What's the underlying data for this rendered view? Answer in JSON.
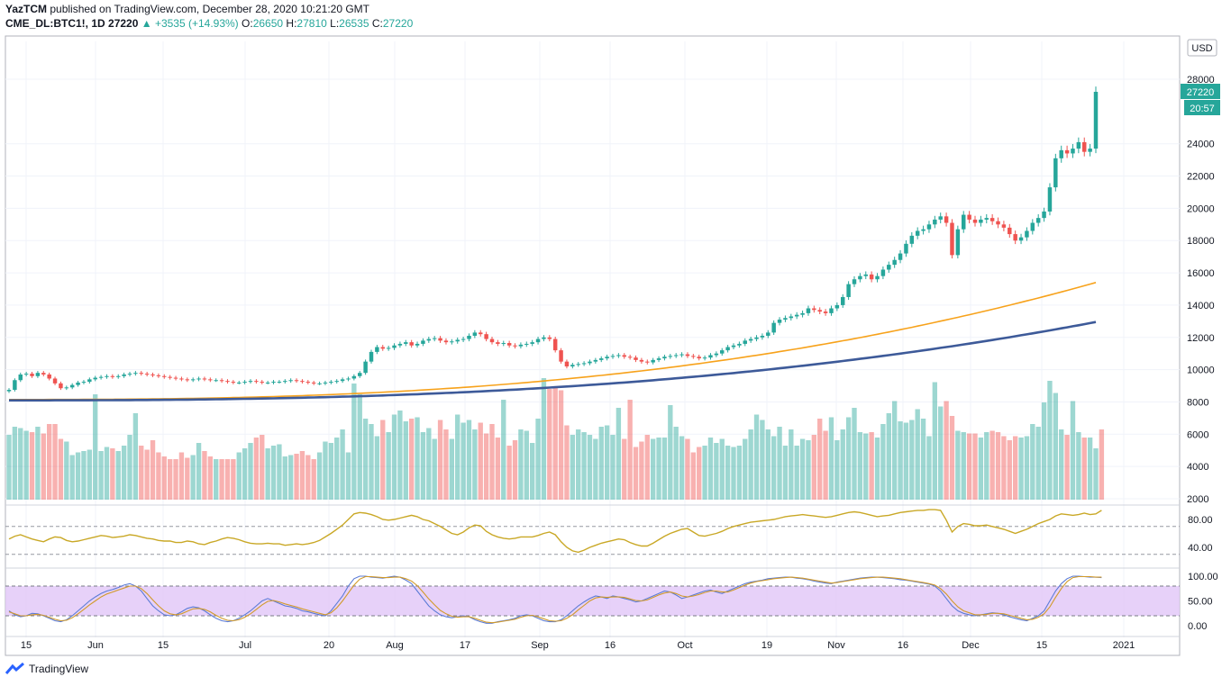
{
  "header": {
    "user": "YazTCM",
    "published_line": " published on TradingView.com, December 28, 2020 10:21:20 GMT",
    "symbol": "CME_DL:BTC1!, 1D",
    "last": "27220",
    "change": "▲ +3535 (+14.93%)",
    "open_label": "O:",
    "open": "26650",
    "high_label": "H:",
    "high": "27810",
    "low_label": "L:",
    "low": "26535",
    "close_label": "C:",
    "close": "27220"
  },
  "currency_button": "USD",
  "price_badge": "27220",
  "countdown_badge": "20:57",
  "footer": {
    "brand": "TradingView"
  },
  "colors": {
    "up": "#26a69a",
    "down": "#ef5350",
    "ma_fast": "#f7a21b",
    "ma_slow": "#3d5a99",
    "rsi": "#c9a826",
    "band": "#e1c6f7"
  },
  "chart_data": [
    {
      "type": "candlestick",
      "title": "CME_DL:BTC1!, 1D",
      "y_ticks": [
        2000,
        4000,
        6000,
        8000,
        10000,
        12000,
        14000,
        16000,
        18000,
        20000,
        22000,
        24000,
        28000
      ],
      "x_tick_labels": [
        "15",
        "Jun",
        "15",
        "Jul",
        "20",
        "Aug",
        "17",
        "Sep",
        "16",
        "Oct",
        "19",
        "Nov",
        "16",
        "Dec",
        "15",
        "2021"
      ],
      "ylim": [
        2000,
        30000
      ],
      "last_price": 27220,
      "ohlc_approx_daily": {
        "dates_start": "2020-05-12",
        "close": [
          8750,
          9350,
          9700,
          9750,
          9600,
          9800,
          9700,
          9450,
          9150,
          8850,
          8900,
          9050,
          9200,
          9250,
          9400,
          9500,
          9550,
          9600,
          9550,
          9600,
          9700,
          9750,
          9800,
          9750,
          9700,
          9650,
          9600,
          9550,
          9500,
          9450,
          9400,
          9350,
          9400,
          9450,
          9400,
          9350,
          9350,
          9300,
          9250,
          9200,
          9200,
          9250,
          9300,
          9250,
          9200,
          9200,
          9250,
          9250,
          9300,
          9350,
          9300,
          9250,
          9200,
          9150,
          9150,
          9200,
          9250,
          9300,
          9400,
          9450,
          9600,
          9800,
          10500,
          11100,
          11400,
          11300,
          11350,
          11500,
          11600,
          11700,
          11500,
          11600,
          11800,
          11900,
          11950,
          11800,
          11700,
          11750,
          11850,
          11900,
          12100,
          12300,
          12200,
          11900,
          11700,
          11600,
          11650,
          11500,
          11450,
          11550,
          11600,
          11700,
          11900,
          12000,
          11900,
          11200,
          10500,
          10200,
          10300,
          10350,
          10400,
          10500,
          10600,
          10700,
          10800,
          10850,
          10900,
          10800,
          10750,
          10600,
          10500,
          10450,
          10600,
          10700,
          10800,
          10850,
          10900,
          10950,
          10850,
          10800,
          10700,
          10750,
          10900,
          11000,
          11200,
          11400,
          11500,
          11600,
          11800,
          11900,
          12000,
          12100,
          12300,
          12900,
          13100,
          13200,
          13300,
          13400,
          13500,
          13800,
          13700,
          13600,
          13500,
          13800,
          14000,
          14500,
          15300,
          15600,
          15800,
          15900,
          15600,
          15800,
          16200,
          16500,
          16800,
          17200,
          17800,
          18300,
          18600,
          18700,
          19000,
          19300,
          19500,
          19100,
          17100,
          18700,
          19600,
          19300,
          19100,
          19300,
          19400,
          19200,
          19000,
          18800,
          18400,
          18000,
          18200,
          18600,
          19100,
          19400,
          19800,
          21300,
          23100,
          23600,
          23400,
          23700,
          24100,
          23500,
          23700,
          27220
        ]
      },
      "moving_averages": [
        {
          "color": "#f7a21b",
          "start": 8150,
          "end": 15400
        },
        {
          "color": "#3d5a99",
          "start": 8100,
          "end": 12950
        }
      ],
      "volume_approx": [
        4800,
        5400,
        5300,
        5100,
        5000,
        5400,
        4900,
        5600,
        5600,
        4500,
        4300,
        3300,
        3500,
        3600,
        3700,
        7800,
        3600,
        3900,
        3800,
        3600,
        4000,
        4800,
        6400,
        4000,
        3700,
        4400,
        3500,
        3200,
        3000,
        3000,
        3500,
        3100,
        3300,
        4200,
        3600,
        3200,
        3000,
        3000,
        3000,
        3000,
        3500,
        3800,
        4200,
        4600,
        4800,
        3800,
        4000,
        4100,
        3200,
        3300,
        3400,
        3600,
        3300,
        3000,
        3500,
        4300,
        4200,
        4600,
        5200,
        3500,
        8600,
        7800,
        6000,
        5600,
        4700,
        5900,
        5000,
        6300,
        6600,
        5800,
        6000,
        6100,
        5000,
        5300,
        4500,
        5900,
        5200,
        4500,
        6300,
        5700,
        5900,
        5200,
        5700,
        4900,
        5600,
        4600,
        7400,
        4000,
        4400,
        5200,
        5100,
        4200,
        6000,
        9000,
        8200,
        8400,
        8100,
        5500,
        4800,
        5200,
        5000,
        4800,
        4500,
        5400,
        5500,
        4800,
        6800,
        4500,
        7400,
        3900,
        4300,
        4800,
        4500,
        4600,
        4600,
        7000,
        5400,
        4700,
        4500,
        3500,
        3900,
        4000,
        4600,
        4200,
        4500,
        4000,
        3900,
        4000,
        4500,
        5200,
        6300,
        5900,
        5200,
        4700,
        5400,
        4000,
        5200,
        4000,
        4500,
        4400,
        4800,
        6000,
        5100,
        6100,
        4400,
        5200,
        6100,
        6800,
        5000,
        4900,
        5000,
        4600,
        5600,
        6400,
        7300,
        5800,
        5700,
        5900,
        6700,
        6000,
        4700,
        8700,
        6900,
        7300,
        6200,
        5100,
        5000,
        4900,
        4900,
        4600,
        5000,
        5100,
        5000,
        4700,
        4400,
        4700,
        4600,
        4700,
        5600,
        5400,
        7200,
        8800,
        7900,
        5200,
        4800,
        7300,
        5000,
        4600,
        4600,
        3800,
        5200
      ]
    },
    {
      "type": "line",
      "title": "",
      "y_ticks": [
        40.0,
        80.0
      ],
      "y_tick_labels": [
        "40.00",
        "80.00"
      ],
      "ylim": [
        20,
        100
      ],
      "levels": [
        30,
        70
      ],
      "series": [
        {
          "values": [
            52,
            56,
            58,
            55,
            52,
            50,
            48,
            52,
            55,
            54,
            50,
            48,
            49,
            51,
            53,
            55,
            57,
            56,
            54,
            55,
            56,
            58,
            57,
            55,
            53,
            52,
            50,
            49,
            49,
            47,
            47,
            49,
            48,
            45,
            44,
            47,
            49,
            52,
            54,
            53,
            51,
            48,
            46,
            45,
            45,
            46,
            45,
            45,
            43,
            44,
            45,
            44,
            45,
            47,
            50,
            55,
            60,
            66,
            72,
            80,
            88,
            90,
            89,
            87,
            84,
            80,
            79,
            80,
            82,
            84,
            86,
            84,
            80,
            78,
            74,
            70,
            65,
            60,
            58,
            62,
            68,
            72,
            71,
            63,
            58,
            55,
            53,
            52,
            53,
            55,
            55,
            55,
            57,
            60,
            62,
            58,
            48,
            40,
            35,
            33,
            36,
            40,
            43,
            46,
            48,
            50,
            52,
            51,
            47,
            44,
            42,
            42,
            46,
            51,
            56,
            60,
            63,
            66,
            67,
            62,
            57,
            56,
            58,
            60,
            63,
            67,
            70,
            72,
            74,
            76,
            77,
            78,
            79,
            80,
            82,
            84,
            85,
            86,
            87,
            86,
            85,
            84,
            83,
            84,
            86,
            88,
            90,
            91,
            90,
            88,
            86,
            84,
            85,
            86,
            88,
            90,
            91,
            92,
            93,
            93,
            94,
            94,
            93,
            79,
            62,
            70,
            74,
            73,
            71,
            71,
            72,
            70,
            68,
            66,
            63,
            60,
            63,
            66,
            70,
            74,
            77,
            80,
            85,
            88,
            87,
            86,
            87,
            89,
            87,
            88,
            93
          ]
        }
      ]
    },
    {
      "type": "line",
      "title": "",
      "y_ticks": [
        0,
        50,
        100
      ],
      "y_tick_labels": [
        "0.00",
        "50.00",
        "100.00"
      ],
      "ylim": [
        -10,
        115
      ],
      "band": [
        20,
        80
      ],
      "series": [
        {
          "color": "#5b7bd6",
          "values": [
            30,
            22,
            18,
            20,
            25,
            24,
            20,
            15,
            10,
            8,
            12,
            20,
            30,
            40,
            50,
            58,
            65,
            70,
            73,
            77,
            82,
            85,
            80,
            70,
            55,
            40,
            30,
            22,
            20,
            22,
            28,
            35,
            38,
            36,
            30,
            22,
            15,
            10,
            8,
            10,
            15,
            22,
            30,
            40,
            50,
            55,
            50,
            45,
            40,
            38,
            35,
            30,
            28,
            25,
            22,
            20,
            30,
            45,
            60,
            80,
            95,
            100,
            100,
            98,
            97,
            96,
            98,
            100,
            98,
            92,
            85,
            70,
            55,
            40,
            30,
            22,
            18,
            16,
            18,
            20,
            18,
            12,
            8,
            5,
            5,
            8,
            10,
            12,
            15,
            20,
            22,
            20,
            15,
            10,
            8,
            8,
            12,
            20,
            30,
            40,
            48,
            55,
            60,
            58,
            55,
            60,
            58,
            55,
            52,
            48,
            50,
            55,
            60,
            65,
            70,
            68,
            62,
            55,
            58,
            62,
            66,
            70,
            72,
            68,
            65,
            70,
            75,
            80,
            85,
            88,
            90,
            92,
            95,
            96,
            97,
            98,
            98,
            96,
            95,
            93,
            90,
            88,
            86,
            85,
            88,
            90,
            92,
            94,
            96,
            97,
            98,
            98,
            97,
            96,
            95,
            93,
            92,
            90,
            88,
            86,
            84,
            80,
            70,
            55,
            40,
            30,
            25,
            22,
            20,
            22,
            24,
            26,
            25,
            22,
            18,
            15,
            12,
            10,
            15,
            20,
            30,
            50,
            70,
            85,
            95,
            100,
            100,
            99,
            98,
            98,
            97
          ]
        },
        {
          "color": "#d19a2a",
          "values": [
            28,
            24,
            20,
            20,
            22,
            23,
            21,
            17,
            13,
            10,
            11,
            16,
            24,
            33,
            42,
            50,
            58,
            64,
            68,
            72,
            76,
            80,
            80,
            75,
            65,
            52,
            40,
            30,
            24,
            22,
            24,
            29,
            34,
            35,
            33,
            28,
            21,
            15,
            11,
            10,
            12,
            17,
            24,
            33,
            42,
            49,
            51,
            48,
            44,
            41,
            38,
            34,
            31,
            28,
            25,
            22,
            26,
            36,
            50,
            66,
            82,
            94,
            99,
            99,
            98,
            97,
            97,
            98,
            98,
            95,
            90,
            81,
            68,
            54,
            42,
            31,
            24,
            19,
            17,
            18,
            18,
            15,
            11,
            7,
            6,
            7,
            9,
            11,
            13,
            17,
            20,
            21,
            18,
            14,
            10,
            9,
            10,
            15,
            22,
            32,
            41,
            50,
            56,
            58,
            57,
            58,
            58,
            57,
            54,
            51,
            50,
            52,
            57,
            62,
            66,
            68,
            65,
            60,
            58,
            60,
            63,
            67,
            70,
            70,
            68,
            68,
            72,
            77,
            82,
            86,
            89,
            91,
            93,
            95,
            96,
            97,
            98,
            97,
            96,
            94,
            92,
            90,
            88,
            86,
            87,
            89,
            91,
            93,
            95,
            96,
            97,
            98,
            98,
            97,
            96,
            95,
            93,
            91,
            89,
            87,
            85,
            82,
            75,
            64,
            50,
            38,
            30,
            26,
            22,
            22,
            23,
            25,
            25,
            24,
            21,
            18,
            15,
            12,
            13,
            17,
            24,
            38,
            57,
            75,
            89,
            97,
            99,
            99,
            99,
            98,
            98
          ]
        }
      ]
    }
  ]
}
